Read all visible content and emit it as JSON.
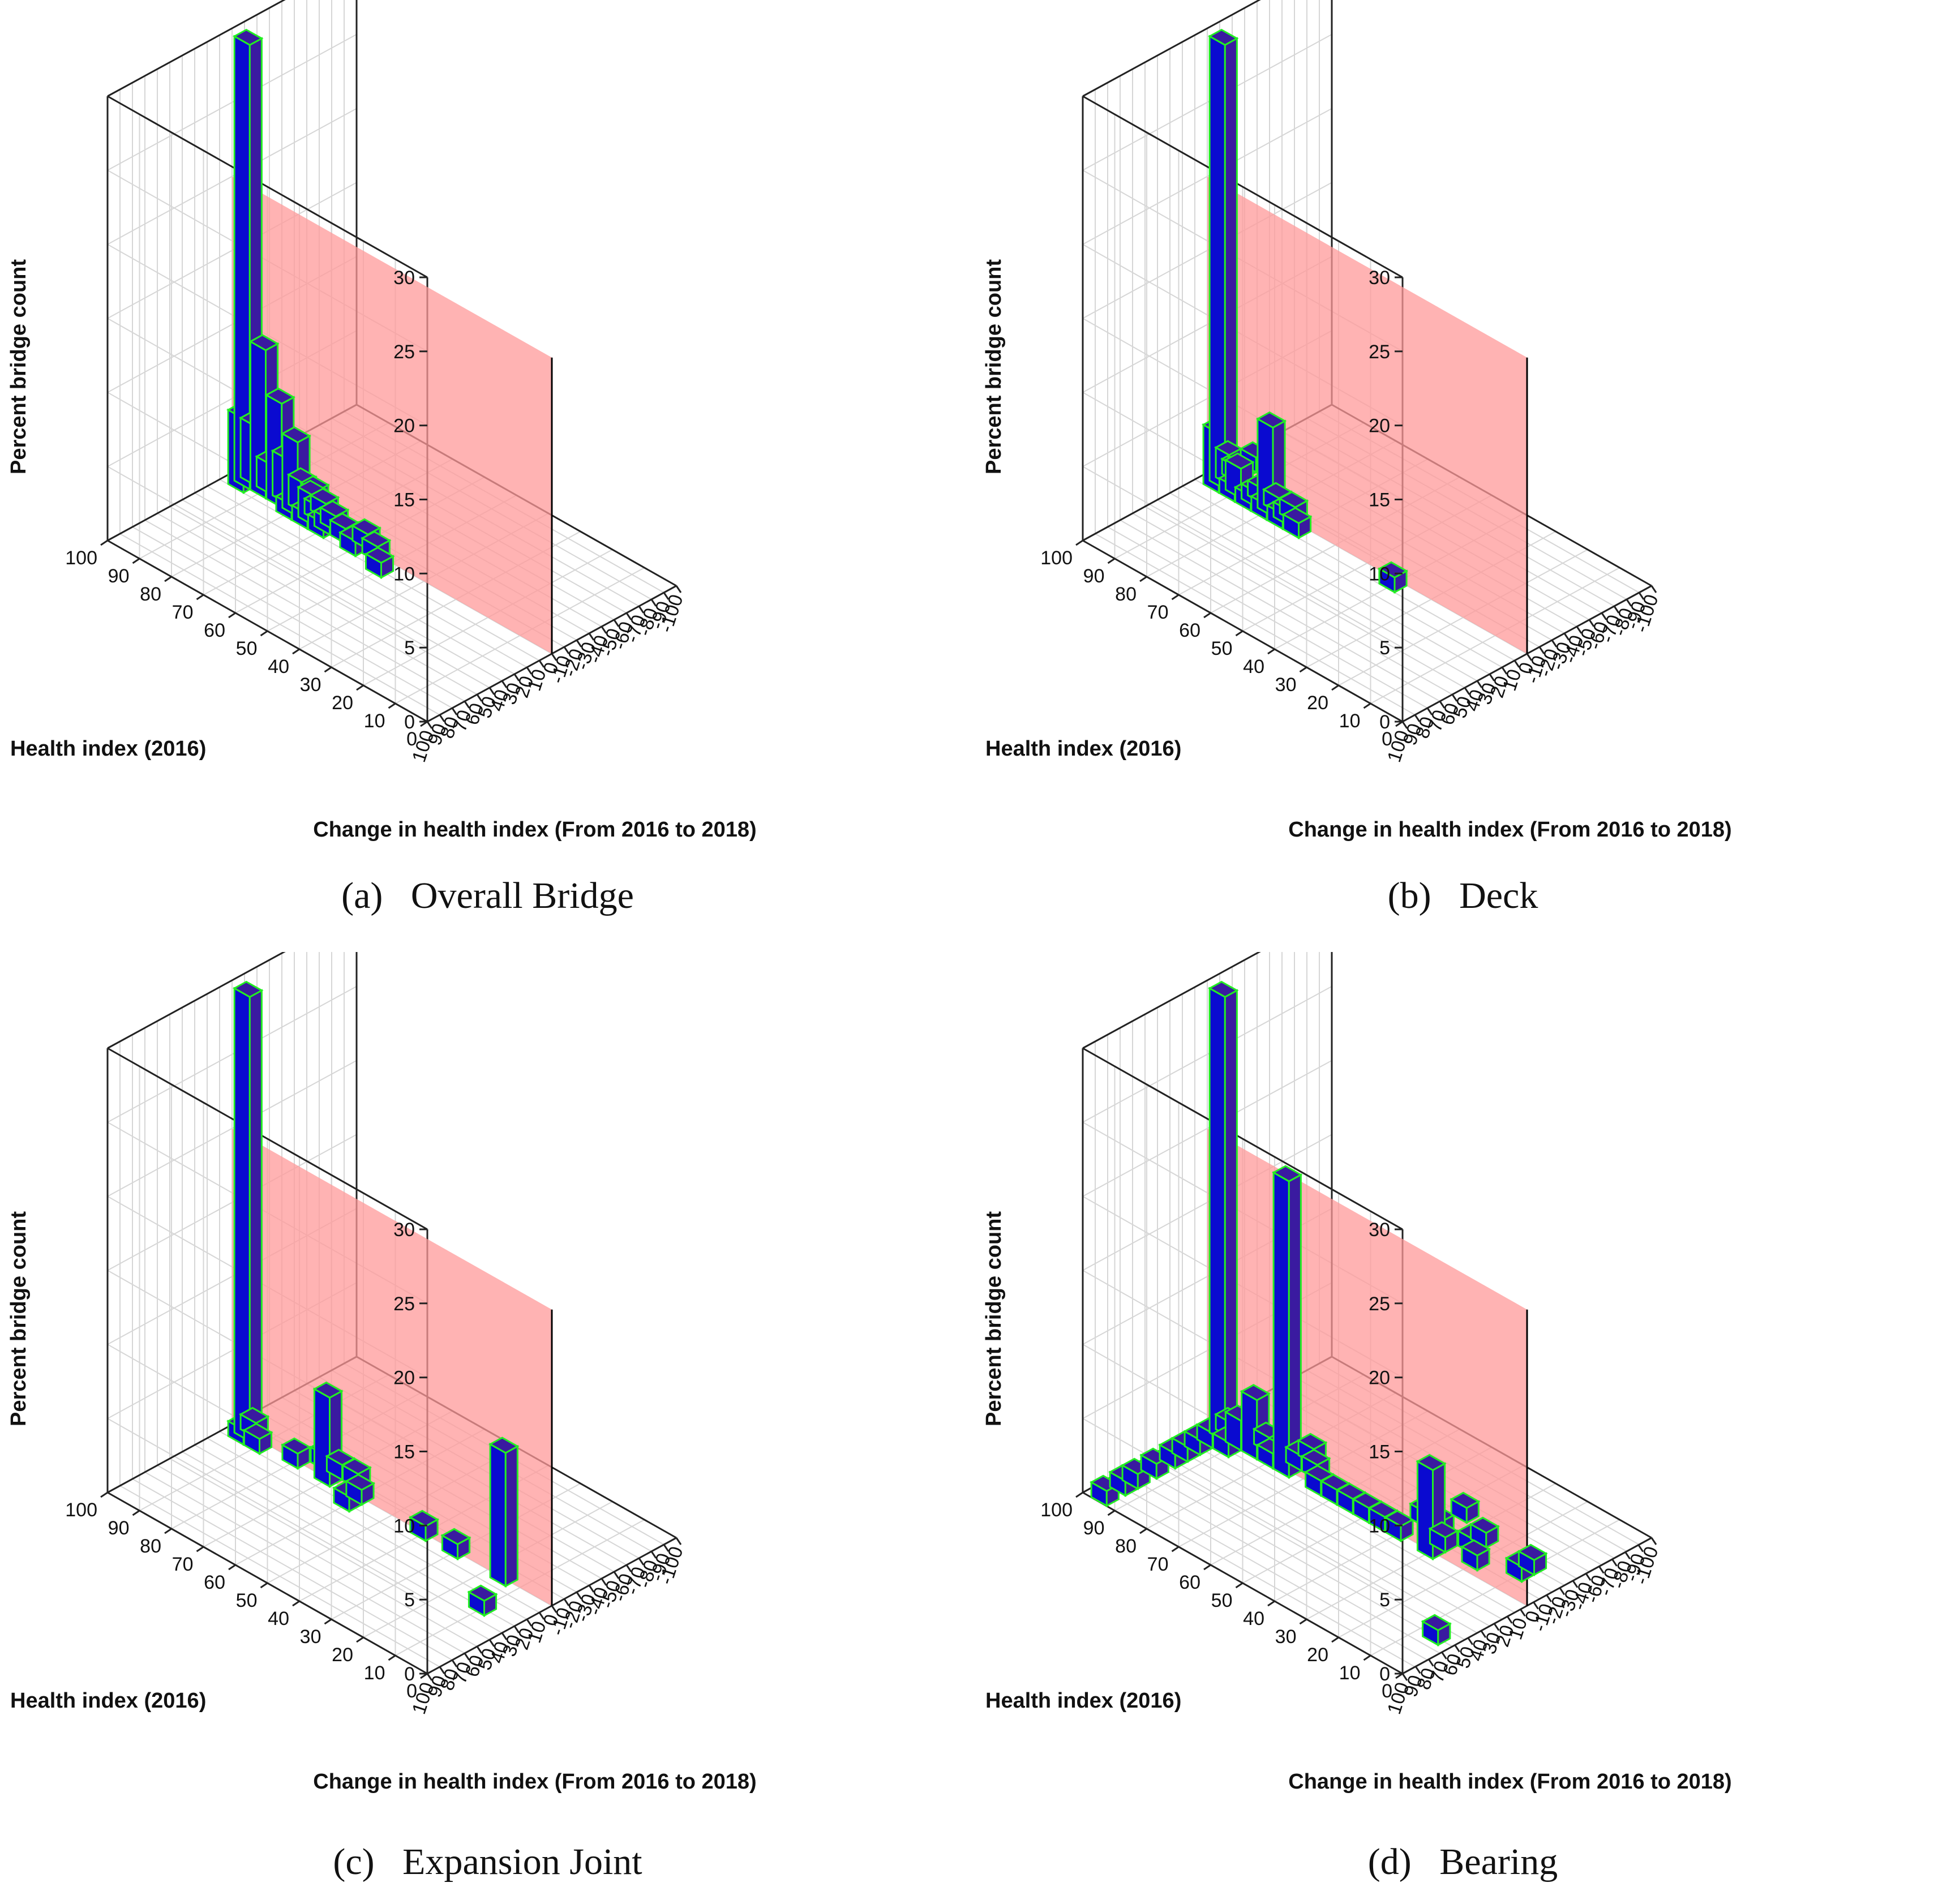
{
  "colors": {
    "bar_face": "#0a0ad0",
    "bar_side": "#3a1aa0",
    "bar_edge": "#22ee22",
    "wall": "#ff9a9a",
    "grid": "#d6d6d6",
    "box": "#222222"
  },
  "chart_data": [
    {
      "type": "bar3d",
      "caption_label": "(a)",
      "caption_title": "Overall Bridge",
      "xlabel": "Health index (2016)",
      "ylabel": "Change in health index (From 2016 to 2018)",
      "zlabel": "Percent bridge count",
      "x_ticks": [
        "100",
        "90",
        "80",
        "70",
        "60",
        "50",
        "40",
        "30",
        "20",
        "10",
        "0"
      ],
      "y_ticks": [
        "100",
        "90",
        "80",
        "70",
        "60",
        "50",
        "40",
        "30",
        "20",
        "10",
        "0",
        "-10",
        "-20",
        "-30",
        "-40",
        "-50",
        "-60",
        "-70",
        "-80",
        "-90",
        "-100"
      ],
      "z_ticks": [
        "0",
        "5",
        "10",
        "15",
        "20",
        "25",
        "30"
      ],
      "x_range": [
        0,
        100
      ],
      "y_range": [
        -100,
        100
      ],
      "z_range": [
        0,
        30
      ],
      "wall_at_change": 0,
      "bars": [
        {
          "health": 95,
          "change": 0,
          "value": 30
        },
        {
          "health": 95,
          "change": 5,
          "value": 5
        },
        {
          "health": 95,
          "change": -5,
          "value": 4
        },
        {
          "health": 90,
          "change": 0,
          "value": 10
        },
        {
          "health": 90,
          "change": -5,
          "value": 2
        },
        {
          "health": 90,
          "change": -15,
          "value": 1
        },
        {
          "health": 85,
          "change": 0,
          "value": 7
        },
        {
          "health": 85,
          "change": -5,
          "value": 3
        },
        {
          "health": 85,
          "change": -15,
          "value": 1
        },
        {
          "health": 80,
          "change": 0,
          "value": 5
        },
        {
          "health": 80,
          "change": 5,
          "value": 1
        },
        {
          "health": 80,
          "change": -5,
          "value": 2
        },
        {
          "health": 80,
          "change": -15,
          "value": 1
        },
        {
          "health": 75,
          "change": 0,
          "value": 2
        },
        {
          "health": 75,
          "change": 5,
          "value": 1
        },
        {
          "health": 75,
          "change": -5,
          "value": 1
        },
        {
          "health": 75,
          "change": -10,
          "value": 1
        },
        {
          "health": 70,
          "change": 0,
          "value": 1
        },
        {
          "health": 70,
          "change": 5,
          "value": 1
        },
        {
          "health": 70,
          "change": -5,
          "value": 1
        },
        {
          "health": 65,
          "change": 0,
          "value": 1
        },
        {
          "health": 60,
          "change": 5,
          "value": 1
        },
        {
          "health": 60,
          "change": -5,
          "value": 1
        },
        {
          "health": 55,
          "change": 0,
          "value": 1
        },
        {
          "health": 50,
          "change": 10,
          "value": 1
        }
      ]
    },
    {
      "type": "bar3d",
      "caption_label": "(b)",
      "caption_title": "Deck",
      "xlabel": "Health index (2016)",
      "ylabel": "Change in health index (From 2016 to 2018)",
      "zlabel": "Percent bridge count",
      "x_ticks": [
        "100",
        "90",
        "80",
        "70",
        "60",
        "50",
        "40",
        "30",
        "20",
        "10",
        "0"
      ],
      "y_ticks": [
        "100",
        "90",
        "80",
        "70",
        "60",
        "50",
        "40",
        "30",
        "20",
        "10",
        "0",
        "-10",
        "-20",
        "-30",
        "-40",
        "-50",
        "-60",
        "-70",
        "-80",
        "-90",
        "-100"
      ],
      "z_ticks": [
        "0",
        "5",
        "10",
        "15",
        "20",
        "25",
        "30"
      ],
      "x_range": [
        0,
        100
      ],
      "y_range": [
        -100,
        100
      ],
      "z_range": [
        0,
        30
      ],
      "wall_at_change": 0,
      "bars": [
        {
          "health": 95,
          "change": 0,
          "value": 30
        },
        {
          "health": 95,
          "change": 5,
          "value": 4
        },
        {
          "health": 95,
          "change": -5,
          "value": 2
        },
        {
          "health": 95,
          "change": -10,
          "value": 1
        },
        {
          "health": 95,
          "change": -15,
          "value": 1
        },
        {
          "health": 95,
          "change": -25,
          "value": 1
        },
        {
          "health": 90,
          "change": 0,
          "value": 2
        },
        {
          "health": 90,
          "change": 5,
          "value": 1
        },
        {
          "health": 85,
          "change": 0,
          "value": 1
        },
        {
          "health": 85,
          "change": 5,
          "value": 1
        },
        {
          "health": 85,
          "change": -5,
          "value": 1
        },
        {
          "health": 80,
          "change": 0,
          "value": 6
        },
        {
          "health": 80,
          "change": 5,
          "value": 1
        },
        {
          "health": 80,
          "change": -5,
          "value": 1
        },
        {
          "health": 75,
          "change": 0,
          "value": 1
        },
        {
          "health": 75,
          "change": 5,
          "value": 1
        },
        {
          "health": 75,
          "change": -5,
          "value": 1
        },
        {
          "health": 70,
          "change": 5,
          "value": 1
        },
        {
          "health": 40,
          "change": 5,
          "value": 1
        }
      ]
    },
    {
      "type": "bar3d",
      "caption_label": "(c)",
      "caption_title": "Expansion Joint",
      "xlabel": "Health index (2016)",
      "ylabel": "Change in health index (From 2016 to 2018)",
      "zlabel": "Percent bridge count",
      "x_ticks": [
        "100",
        "90",
        "80",
        "70",
        "60",
        "50",
        "40",
        "30",
        "20",
        "10",
        "0"
      ],
      "y_ticks": [
        "100",
        "90",
        "80",
        "70",
        "60",
        "50",
        "40",
        "30",
        "20",
        "10",
        "0",
        "-10",
        "-20",
        "-30",
        "-40",
        "-50",
        "-60",
        "-70",
        "-80",
        "-90",
        "-100"
      ],
      "z_ticks": [
        "0",
        "5",
        "10",
        "15",
        "20",
        "25",
        "30"
      ],
      "x_range": [
        0,
        100
      ],
      "y_range": [
        -100,
        100
      ],
      "z_range": [
        0,
        30
      ],
      "wall_at_change": 0,
      "bars": [
        {
          "health": 95,
          "change": 0,
          "value": 30
        },
        {
          "health": 95,
          "change": 5,
          "value": 1
        },
        {
          "health": 95,
          "change": -5,
          "value": 1
        },
        {
          "health": 90,
          "change": 5,
          "value": 1
        },
        {
          "health": 80,
          "change": 0,
          "value": 1
        },
        {
          "health": 75,
          "change": -10,
          "value": 1
        },
        {
          "health": 70,
          "change": 0,
          "value": 6
        },
        {
          "health": 70,
          "change": -10,
          "value": 1
        },
        {
          "health": 65,
          "change": -10,
          "value": 1
        },
        {
          "health": 60,
          "change": 10,
          "value": 1
        },
        {
          "health": 60,
          "change": 0,
          "value": 1
        },
        {
          "health": 40,
          "change": 0,
          "value": 1
        },
        {
          "health": 30,
          "change": 0,
          "value": 1
        },
        {
          "health": 15,
          "change": 0,
          "value": 9
        },
        {
          "health": 10,
          "change": 30,
          "value": 1
        }
      ]
    },
    {
      "type": "bar3d",
      "caption_label": "(d)",
      "caption_title": "Bearing",
      "xlabel": "Health index (2016)",
      "ylabel": "Change in health index (From 2016 to 2018)",
      "zlabel": "Percent bridge count",
      "x_ticks": [
        "100",
        "90",
        "80",
        "70",
        "60",
        "50",
        "40",
        "30",
        "20",
        "10",
        "0"
      ],
      "y_ticks": [
        "100",
        "90",
        "80",
        "70",
        "60",
        "50",
        "40",
        "30",
        "20",
        "10",
        "0",
        "-10",
        "-20",
        "-30",
        "-40",
        "-60",
        "-70",
        "-80",
        "-90",
        "-100"
      ],
      "z_ticks": [
        "0",
        "5",
        "10",
        "15",
        "20",
        "25",
        "30"
      ],
      "x_range": [
        0,
        100
      ],
      "y_range": [
        -100,
        100
      ],
      "z_range": [
        0,
        30
      ],
      "wall_at_change": 0,
      "bars": [
        {
          "health": 95,
          "change": 0,
          "value": 30
        },
        {
          "health": 95,
          "change": 95,
          "value": 1
        },
        {
          "health": 95,
          "change": 80,
          "value": 1
        },
        {
          "health": 95,
          "change": 70,
          "value": 1
        },
        {
          "health": 95,
          "change": 55,
          "value": 1
        },
        {
          "health": 95,
          "change": 40,
          "value": 1
        },
        {
          "health": 95,
          "change": 30,
          "value": 1
        },
        {
          "health": 95,
          "change": 20,
          "value": 1
        },
        {
          "health": 95,
          "change": 10,
          "value": 1
        },
        {
          "health": 95,
          "change": -5,
          "value": 1
        },
        {
          "health": 90,
          "change": 0,
          "value": 2
        },
        {
          "health": 90,
          "change": 10,
          "value": 1
        },
        {
          "health": 85,
          "change": 0,
          "value": 4
        },
        {
          "health": 85,
          "change": -10,
          "value": 1
        },
        {
          "health": 80,
          "change": 0,
          "value": 1
        },
        {
          "health": 75,
          "change": 0,
          "value": 20
        },
        {
          "health": 75,
          "change": -10,
          "value": 1
        },
        {
          "health": 75,
          "change": -20,
          "value": 1
        },
        {
          "health": 70,
          "change": -10,
          "value": 1
        },
        {
          "health": 65,
          "change": 0,
          "value": 1
        },
        {
          "health": 60,
          "change": 0,
          "value": 1
        },
        {
          "health": 55,
          "change": 0,
          "value": 1
        },
        {
          "health": 50,
          "change": 0,
          "value": 1
        },
        {
          "health": 45,
          "change": 0,
          "value": 1
        },
        {
          "health": 40,
          "change": 0,
          "value": 1
        },
        {
          "health": 40,
          "change": -20,
          "value": 1
        },
        {
          "health": 35,
          "change": -20,
          "value": 1
        },
        {
          "health": 35,
          "change": -40,
          "value": 1
        },
        {
          "health": 30,
          "change": 0,
          "value": 6
        },
        {
          "health": 30,
          "change": -10,
          "value": 1
        },
        {
          "health": 25,
          "change": -20,
          "value": 1
        },
        {
          "health": 25,
          "change": -30,
          "value": 1
        },
        {
          "health": 20,
          "change": -10,
          "value": 1
        },
        {
          "health": 10,
          "change": -20,
          "value": 1
        },
        {
          "health": 10,
          "change": -30,
          "value": 1
        },
        {
          "health": 5,
          "change": 60,
          "value": 1
        }
      ]
    }
  ]
}
